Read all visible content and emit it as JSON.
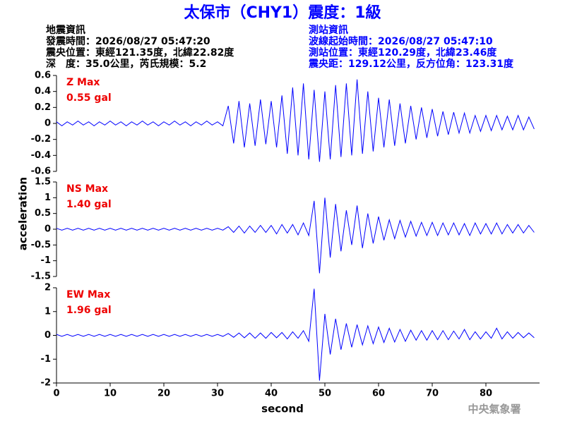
{
  "header": {
    "title": "太保市（CHY1）震度：1級",
    "quake_info": [
      "地震資訊",
      "發震時間：2026/08/27 05:47:20",
      "震央位置：東經121.35度，北緯22.82度",
      "深　度：35.0公里，芮氏規模：5.2"
    ],
    "station_info": [
      "測站資訊",
      "波線起始時間：2026/08/27 05:47:10",
      "測站位置：東經120.29度，北緯23.46度",
      "震央距：129.12公里，反方位角：123.31度"
    ]
  },
  "axes": {
    "ylabel": "acceleration",
    "xlabel": "second"
  },
  "footer": "中央氣象署",
  "chart_data": [
    {
      "type": "line",
      "annotations": [
        "Z Max",
        "0.55 gal"
      ],
      "color": "#0000ff",
      "xlim": [
        0,
        90
      ],
      "ylim": [
        -0.6,
        0.6
      ],
      "yticks": [
        -0.6,
        -0.4,
        -0.2,
        0,
        0.2,
        0.4,
        0.6
      ],
      "x": [
        0,
        1,
        2,
        3,
        4,
        5,
        6,
        7,
        8,
        9,
        10,
        11,
        12,
        13,
        14,
        15,
        16,
        17,
        18,
        19,
        20,
        21,
        22,
        23,
        24,
        25,
        26,
        27,
        28,
        29,
        30,
        31,
        32,
        33,
        34,
        35,
        36,
        37,
        38,
        39,
        40,
        41,
        42,
        43,
        44,
        45,
        46,
        47,
        48,
        49,
        50,
        51,
        52,
        53,
        54,
        55,
        56,
        57,
        58,
        59,
        60,
        61,
        62,
        63,
        64,
        65,
        66,
        67,
        68,
        69,
        70,
        71,
        72,
        73,
        74,
        75,
        76,
        77,
        78,
        79,
        80,
        81,
        82,
        83,
        84,
        85,
        86,
        87,
        88,
        89
      ],
      "values": [
        0.02,
        -0.03,
        0.02,
        -0.02,
        0.03,
        -0.02,
        0.02,
        -0.03,
        0.02,
        -0.02,
        0.03,
        -0.02,
        0.02,
        -0.03,
        0.02,
        -0.02,
        0.03,
        -0.02,
        0.02,
        -0.03,
        0.02,
        -0.02,
        0.03,
        -0.02,
        0.02,
        -0.03,
        0.02,
        -0.02,
        0.03,
        -0.02,
        0.02,
        -0.03,
        0.22,
        -0.25,
        0.28,
        -0.3,
        0.25,
        -0.28,
        0.3,
        -0.26,
        0.28,
        -0.3,
        0.35,
        -0.38,
        0.45,
        -0.4,
        0.5,
        -0.45,
        0.42,
        -0.48,
        0.4,
        -0.45,
        0.48,
        -0.42,
        0.5,
        -0.4,
        0.55,
        -0.38,
        0.4,
        -0.35,
        0.32,
        -0.3,
        0.3,
        -0.28,
        0.25,
        -0.25,
        0.22,
        -0.2,
        0.2,
        -0.18,
        0.18,
        -0.16,
        0.15,
        -0.14,
        0.14,
        -0.12,
        0.13,
        -0.12,
        0.1,
        -0.1,
        0.1,
        -0.09,
        0.1,
        -0.08,
        0.09,
        -0.08,
        0.1,
        -0.08,
        0.08,
        -0.07
      ]
    },
    {
      "type": "line",
      "annotations": [
        "NS Max",
        "1.40 gal"
      ],
      "color": "#0000ff",
      "xlim": [
        0,
        90
      ],
      "ylim": [
        -1.5,
        1.5
      ],
      "yticks": [
        -1.5,
        -1,
        -0.5,
        0,
        0.5,
        1,
        1.5
      ],
      "x": [
        0,
        1,
        2,
        3,
        4,
        5,
        6,
        7,
        8,
        9,
        10,
        11,
        12,
        13,
        14,
        15,
        16,
        17,
        18,
        19,
        20,
        21,
        22,
        23,
        24,
        25,
        26,
        27,
        28,
        29,
        30,
        31,
        32,
        33,
        34,
        35,
        36,
        37,
        38,
        39,
        40,
        41,
        42,
        43,
        44,
        45,
        46,
        47,
        48,
        49,
        50,
        51,
        52,
        53,
        54,
        55,
        56,
        57,
        58,
        59,
        60,
        61,
        62,
        63,
        64,
        65,
        66,
        67,
        68,
        69,
        70,
        71,
        72,
        73,
        74,
        75,
        76,
        77,
        78,
        79,
        80,
        81,
        82,
        83,
        84,
        85,
        86,
        87,
        88,
        89
      ],
      "values": [
        0.03,
        -0.03,
        0.03,
        -0.03,
        0.03,
        -0.03,
        0.03,
        -0.03,
        0.03,
        -0.03,
        0.03,
        -0.03,
        0.03,
        -0.03,
        0.03,
        -0.03,
        0.03,
        -0.03,
        0.03,
        -0.03,
        0.03,
        -0.03,
        0.03,
        -0.03,
        0.03,
        -0.03,
        0.03,
        -0.03,
        0.03,
        -0.03,
        0.03,
        -0.03,
        0.08,
        -0.1,
        0.1,
        -0.12,
        0.1,
        -0.1,
        0.12,
        -0.1,
        0.12,
        -0.15,
        0.15,
        -0.12,
        0.15,
        -0.18,
        0.2,
        -0.2,
        0.9,
        -1.4,
        1.0,
        -0.9,
        0.8,
        -0.7,
        0.6,
        -0.5,
        0.75,
        -0.6,
        0.5,
        -0.45,
        0.4,
        -0.35,
        0.3,
        -0.3,
        0.28,
        -0.25,
        0.25,
        -0.22,
        0.22,
        -0.2,
        0.22,
        -0.2,
        0.2,
        -0.18,
        0.2,
        -0.18,
        0.18,
        -0.2,
        0.2,
        -0.15,
        0.18,
        -0.15,
        0.2,
        -0.15,
        0.15,
        -0.12,
        0.15,
        -0.12,
        0.12,
        -0.1
      ]
    },
    {
      "type": "line",
      "annotations": [
        "EW Max",
        "1.96 gal"
      ],
      "color": "#0000ff",
      "xlim": [
        0,
        90
      ],
      "ylim": [
        -2,
        2
      ],
      "yticks": [
        -2,
        -1,
        0,
        1,
        2
      ],
      "xticks": [
        0,
        10,
        20,
        30,
        40,
        50,
        60,
        70,
        80
      ],
      "x": [
        0,
        1,
        2,
        3,
        4,
        5,
        6,
        7,
        8,
        9,
        10,
        11,
        12,
        13,
        14,
        15,
        16,
        17,
        18,
        19,
        20,
        21,
        22,
        23,
        24,
        25,
        26,
        27,
        28,
        29,
        30,
        31,
        32,
        33,
        34,
        35,
        36,
        37,
        38,
        39,
        40,
        41,
        42,
        43,
        44,
        45,
        46,
        47,
        48,
        49,
        50,
        51,
        52,
        53,
        54,
        55,
        56,
        57,
        58,
        59,
        60,
        61,
        62,
        63,
        64,
        65,
        66,
        67,
        68,
        69,
        70,
        71,
        72,
        73,
        74,
        75,
        76,
        77,
        78,
        79,
        80,
        81,
        82,
        83,
        84,
        85,
        86,
        87,
        88,
        89
      ],
      "values": [
        0.04,
        -0.04,
        0.04,
        -0.04,
        0.04,
        -0.04,
        0.04,
        -0.04,
        0.04,
        -0.04,
        0.04,
        -0.04,
        0.04,
        -0.04,
        0.04,
        -0.04,
        0.04,
        -0.04,
        0.04,
        -0.04,
        0.04,
        -0.04,
        0.04,
        -0.04,
        0.04,
        -0.04,
        0.04,
        -0.04,
        0.04,
        -0.04,
        0.04,
        -0.04,
        0.08,
        -0.08,
        0.1,
        -0.1,
        0.1,
        -0.12,
        0.1,
        -0.12,
        0.12,
        -0.1,
        0.12,
        -0.15,
        0.15,
        -0.12,
        0.2,
        -0.25,
        1.96,
        -1.9,
        0.9,
        -0.8,
        0.7,
        -0.6,
        0.5,
        -0.5,
        0.45,
        -0.4,
        0.4,
        -0.35,
        0.35,
        -0.3,
        0.3,
        -0.28,
        0.25,
        -0.25,
        0.22,
        -0.2,
        0.2,
        -0.2,
        0.2,
        -0.18,
        0.2,
        -0.18,
        0.18,
        -0.15,
        0.25,
        -0.18,
        0.15,
        -0.15,
        0.15,
        -0.12,
        0.3,
        -0.15,
        0.15,
        -0.12,
        0.12,
        -0.1,
        0.1,
        -0.1
      ]
    }
  ]
}
